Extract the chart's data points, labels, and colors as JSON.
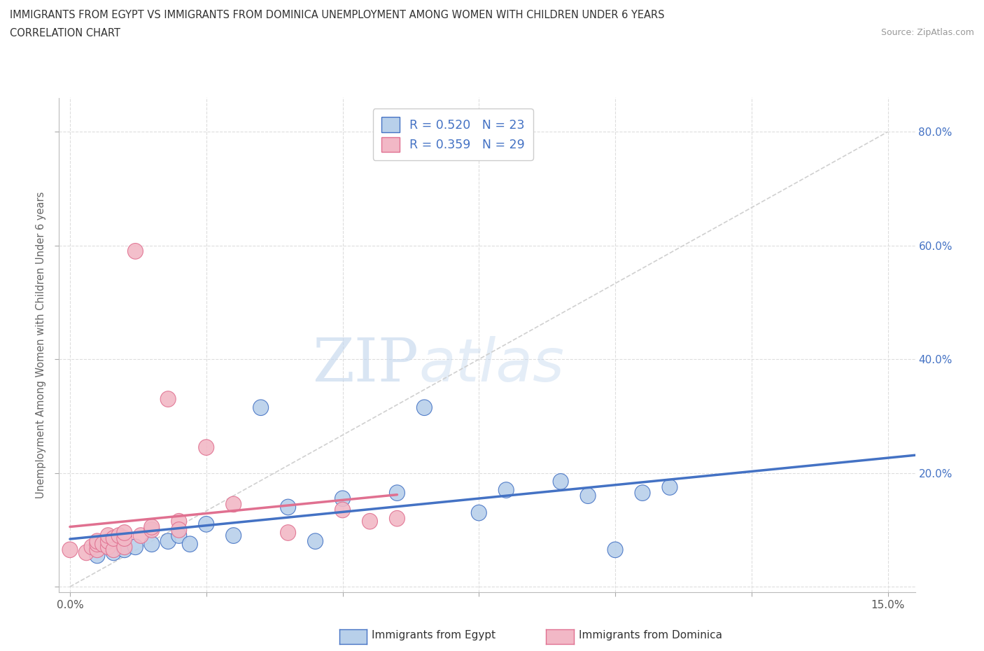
{
  "title_line1": "IMMIGRANTS FROM EGYPT VS IMMIGRANTS FROM DOMINICA UNEMPLOYMENT AMONG WOMEN WITH CHILDREN UNDER 6 YEARS",
  "title_line2": "CORRELATION CHART",
  "source": "Source: ZipAtlas.com",
  "ylabel": "Unemployment Among Women with Children Under 6 years",
  "watermark_zip": "ZIP",
  "watermark_atlas": "atlas",
  "egypt_face_color": "#b8d0ea",
  "egypt_edge_color": "#4472c4",
  "dominica_face_color": "#f2b8c6",
  "dominica_edge_color": "#e07090",
  "egypt_R": 0.52,
  "egypt_N": 23,
  "dominica_R": 0.359,
  "dominica_N": 29,
  "xlim": [
    -0.002,
    0.155
  ],
  "ylim": [
    -0.01,
    0.86
  ],
  "xtick_positions": [
    0.0,
    0.025,
    0.05,
    0.075,
    0.1,
    0.125,
    0.15
  ],
  "xtick_labels": [
    "0.0%",
    "",
    "",
    "",
    "",
    "",
    "15.0%"
  ],
  "ytick_positions": [
    0.0,
    0.2,
    0.4,
    0.6,
    0.8
  ],
  "ytick_right_labels": [
    "",
    "20.0%",
    "40.0%",
    "60.0%",
    "80.0%"
  ],
  "legend_text_color": "#4472c4",
  "right_tick_color": "#4472c4",
  "background_color": "#ffffff",
  "grid_color": "#dddddd",
  "diag_color": "#d0d0d0",
  "egypt_line_color": "#4472c4",
  "dominica_line_color": "#e07090",
  "egypt_x": [
    0.005,
    0.008,
    0.01,
    0.012,
    0.015,
    0.018,
    0.02,
    0.022,
    0.025,
    0.03,
    0.035,
    0.04,
    0.045,
    0.05,
    0.06,
    0.065,
    0.075,
    0.08,
    0.09,
    0.095,
    0.1,
    0.105,
    0.11
  ],
  "egypt_y": [
    0.055,
    0.06,
    0.065,
    0.07,
    0.075,
    0.08,
    0.09,
    0.075,
    0.11,
    0.09,
    0.315,
    0.14,
    0.08,
    0.155,
    0.165,
    0.315,
    0.13,
    0.17,
    0.185,
    0.16,
    0.065,
    0.165,
    0.175
  ],
  "dominica_x": [
    0.0,
    0.003,
    0.004,
    0.005,
    0.005,
    0.005,
    0.006,
    0.007,
    0.007,
    0.007,
    0.008,
    0.008,
    0.009,
    0.01,
    0.01,
    0.01,
    0.012,
    0.013,
    0.015,
    0.015,
    0.018,
    0.02,
    0.02,
    0.025,
    0.03,
    0.04,
    0.05,
    0.055,
    0.06
  ],
  "dominica_y": [
    0.065,
    0.06,
    0.07,
    0.065,
    0.075,
    0.08,
    0.075,
    0.07,
    0.08,
    0.09,
    0.065,
    0.085,
    0.09,
    0.07,
    0.085,
    0.095,
    0.59,
    0.09,
    0.1,
    0.105,
    0.33,
    0.115,
    0.1,
    0.245,
    0.145,
    0.095,
    0.135,
    0.115,
    0.12
  ]
}
